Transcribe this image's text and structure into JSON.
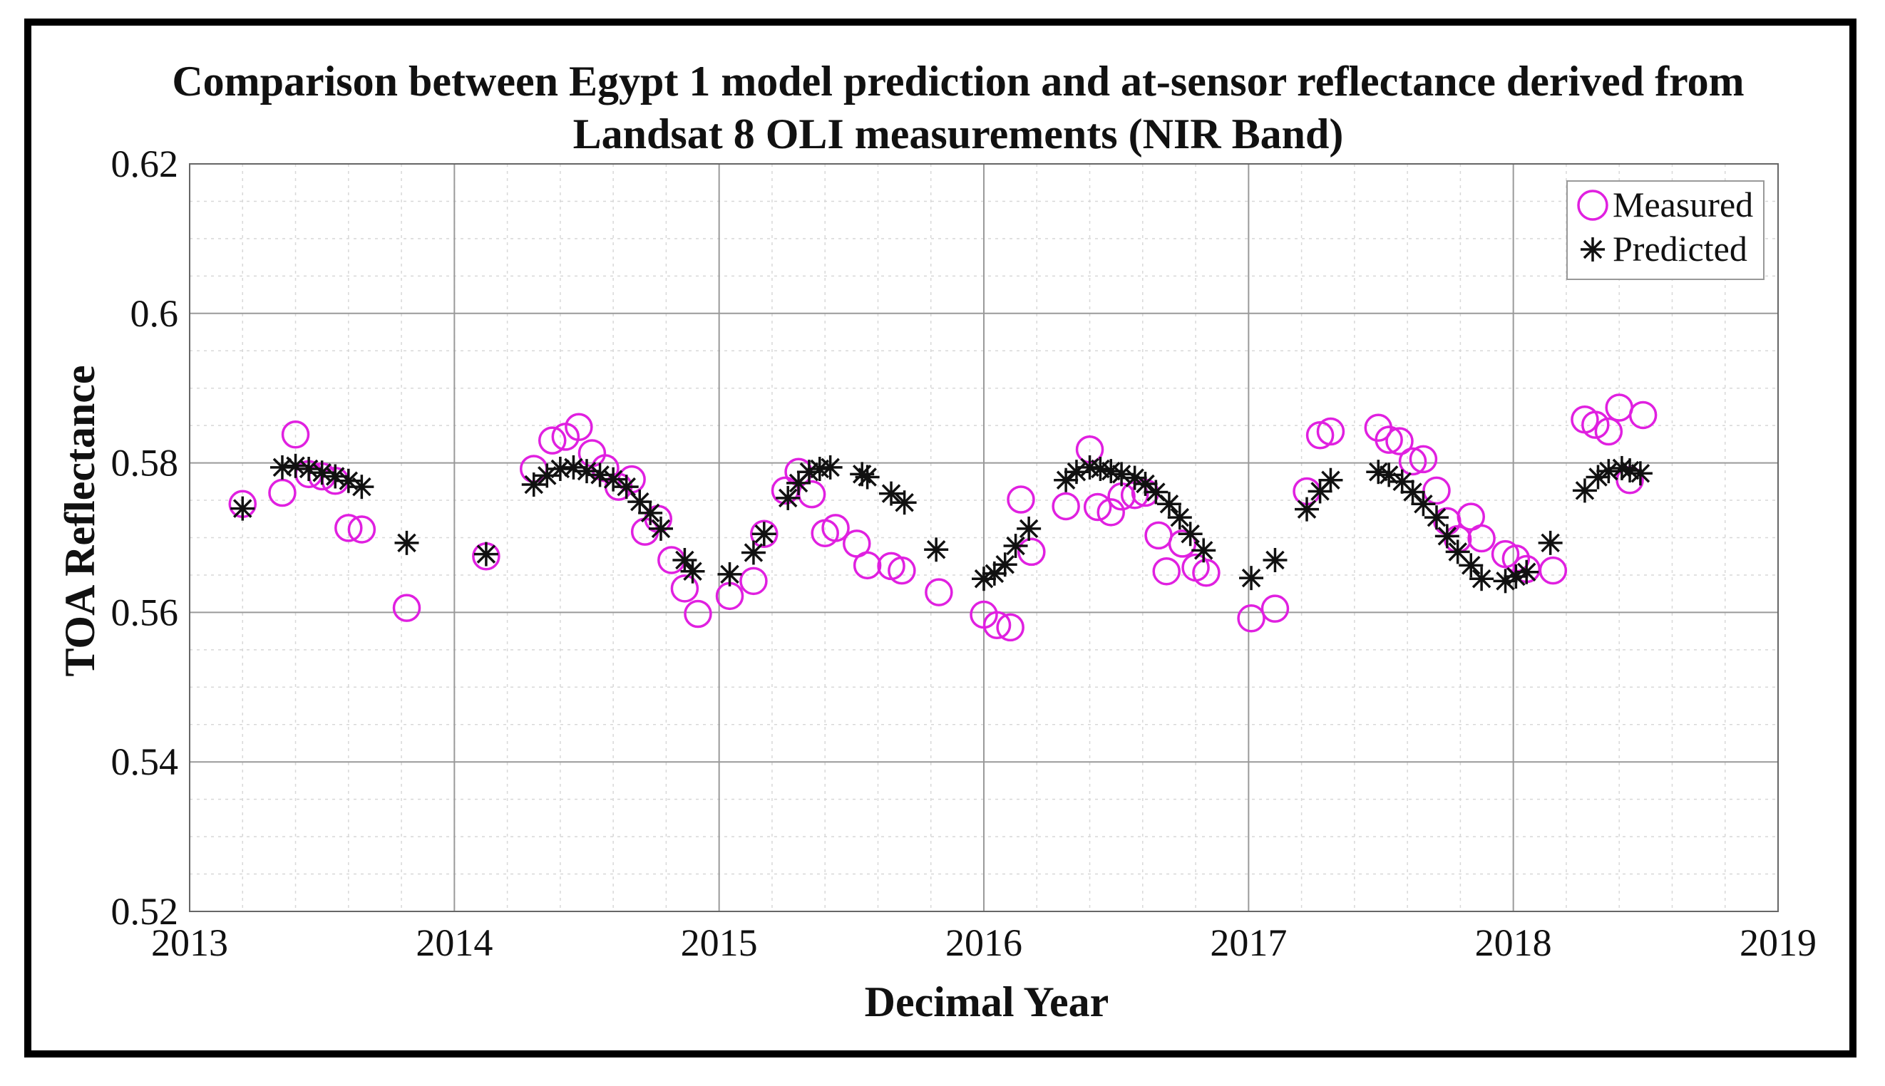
{
  "chart_data": {
    "type": "scatter",
    "title": [
      "Comparison between Egypt 1 model prediction and at-sensor reflectance derived from",
      "Landsat 8 OLI measurements (NIR Band)"
    ],
    "xlabel": "Decimal Year",
    "ylabel": "TOA Reflectance",
    "xlim": [
      2013,
      2019
    ],
    "ylim": [
      0.52,
      0.62
    ],
    "xticks": [
      "2013",
      "2014",
      "2015",
      "2016",
      "2017",
      "2018",
      "2019"
    ],
    "yticks": [
      "0.52",
      "0.54",
      "0.56",
      "0.58",
      "0.6",
      "0.62"
    ],
    "grid": true,
    "legend_position": "top-right",
    "colors": {
      "measured": "#e020e0",
      "predicted": "#111111",
      "grid_major": "#9a9a9a",
      "grid_minor": "#d8d8d8"
    },
    "series": [
      {
        "name": "Measured",
        "marker": "circle",
        "x": [
          2013.2,
          2013.35,
          2013.4,
          2013.45,
          2013.5,
          2013.55,
          2013.6,
          2013.65,
          2013.82,
          2014.12,
          2014.3,
          2014.37,
          2014.42,
          2014.47,
          2014.52,
          2014.57,
          2014.62,
          2014.67,
          2014.72,
          2014.77,
          2014.82,
          2014.87,
          2014.92,
          2015.04,
          2015.13,
          2015.17,
          2015.25,
          2015.3,
          2015.35,
          2015.4,
          2015.44,
          2015.52,
          2015.56,
          2015.65,
          2015.69,
          2015.83,
          2016.0,
          2016.05,
          2016.1,
          2016.14,
          2016.18,
          2016.31,
          2016.4,
          2016.43,
          2016.48,
          2016.52,
          2016.57,
          2016.61,
          2016.66,
          2016.69,
          2016.75,
          2016.8,
          2016.84,
          2017.01,
          2017.1,
          2017.22,
          2017.27,
          2017.31,
          2017.49,
          2017.53,
          2017.57,
          2017.62,
          2017.66,
          2017.71,
          2017.75,
          2017.79,
          2017.84,
          2017.88,
          2017.97,
          2018.01,
          2018.05,
          2018.15,
          2018.27,
          2018.31,
          2018.36,
          2018.4,
          2018.44,
          2018.49
        ],
        "y": [
          0.5745,
          0.576,
          0.5838,
          0.5785,
          0.5782,
          0.5776,
          0.5713,
          0.5711,
          0.5606,
          0.5675,
          0.5792,
          0.583,
          0.5835,
          0.5848,
          0.5813,
          0.5793,
          0.5768,
          0.5778,
          0.5708,
          0.5725,
          0.567,
          0.5632,
          0.5598,
          0.5622,
          0.5642,
          0.5705,
          0.5763,
          0.5788,
          0.5758,
          0.5706,
          0.5713,
          0.5692,
          0.5663,
          0.5662,
          0.5656,
          0.5627,
          0.5597,
          0.5583,
          0.558,
          0.5751,
          0.5681,
          0.5742,
          0.5818,
          0.5741,
          0.5734,
          0.5755,
          0.5757,
          0.576,
          0.5703,
          0.5655,
          0.5692,
          0.566,
          0.5653,
          0.5592,
          0.5605,
          0.5762,
          0.5837,
          0.5842,
          0.5847,
          0.5831,
          0.5829,
          0.5802,
          0.5805,
          0.5763,
          0.5722,
          0.5698,
          0.5728,
          0.5699,
          0.5678,
          0.5672,
          0.5658,
          0.5656,
          0.5858,
          0.5851,
          0.5842,
          0.5874,
          0.5777,
          0.5864
        ]
      },
      {
        "name": "Predicted",
        "marker": "asterisk",
        "x": [
          2013.2,
          2013.35,
          2013.4,
          2013.45,
          2013.5,
          2013.55,
          2013.6,
          2013.65,
          2013.82,
          2014.12,
          2014.3,
          2014.35,
          2014.4,
          2014.45,
          2014.5,
          2014.55,
          2014.6,
          2014.65,
          2014.7,
          2014.74,
          2014.78,
          2014.87,
          2014.9,
          2015.04,
          2015.13,
          2015.17,
          2015.26,
          2015.3,
          2015.34,
          2015.38,
          2015.42,
          2015.54,
          2015.56,
          2015.65,
          2015.7,
          2015.82,
          2016.0,
          2016.04,
          2016.08,
          2016.12,
          2016.17,
          2016.31,
          2016.35,
          2016.4,
          2016.44,
          2016.48,
          2016.52,
          2016.57,
          2016.61,
          2016.65,
          2016.7,
          2016.74,
          2016.78,
          2016.83,
          2017.01,
          2017.1,
          2017.22,
          2017.27,
          2017.31,
          2017.49,
          2017.53,
          2017.58,
          2017.62,
          2017.66,
          2017.71,
          2017.75,
          2017.79,
          2017.84,
          2017.88,
          2017.97,
          2018.01,
          2018.05,
          2018.14,
          2018.27,
          2018.32,
          2018.36,
          2018.41,
          2018.44,
          2018.48
        ],
        "y": [
          0.5739,
          0.5794,
          0.5796,
          0.5792,
          0.5787,
          0.5782,
          0.5776,
          0.5768,
          0.5693,
          0.5678,
          0.5771,
          0.5783,
          0.5792,
          0.5794,
          0.5789,
          0.5784,
          0.5778,
          0.5768,
          0.5748,
          0.5733,
          0.5712,
          0.567,
          0.5655,
          0.5651,
          0.568,
          0.5705,
          0.5753,
          0.5773,
          0.5788,
          0.5792,
          0.5794,
          0.5785,
          0.5781,
          0.5759,
          0.5747,
          0.5684,
          0.5645,
          0.5652,
          0.5664,
          0.5689,
          0.5712,
          0.5777,
          0.5788,
          0.5794,
          0.5792,
          0.5789,
          0.5785,
          0.578,
          0.5772,
          0.5761,
          0.5745,
          0.5727,
          0.5705,
          0.5683,
          0.5646,
          0.567,
          0.5738,
          0.5762,
          0.5777,
          0.5788,
          0.5784,
          0.5775,
          0.5761,
          0.5745,
          0.5727,
          0.5702,
          0.5681,
          0.5663,
          0.5645,
          0.5642,
          0.5648,
          0.5654,
          0.5693,
          0.5763,
          0.5781,
          0.5789,
          0.5793,
          0.579,
          0.5786
        ]
      }
    ]
  }
}
